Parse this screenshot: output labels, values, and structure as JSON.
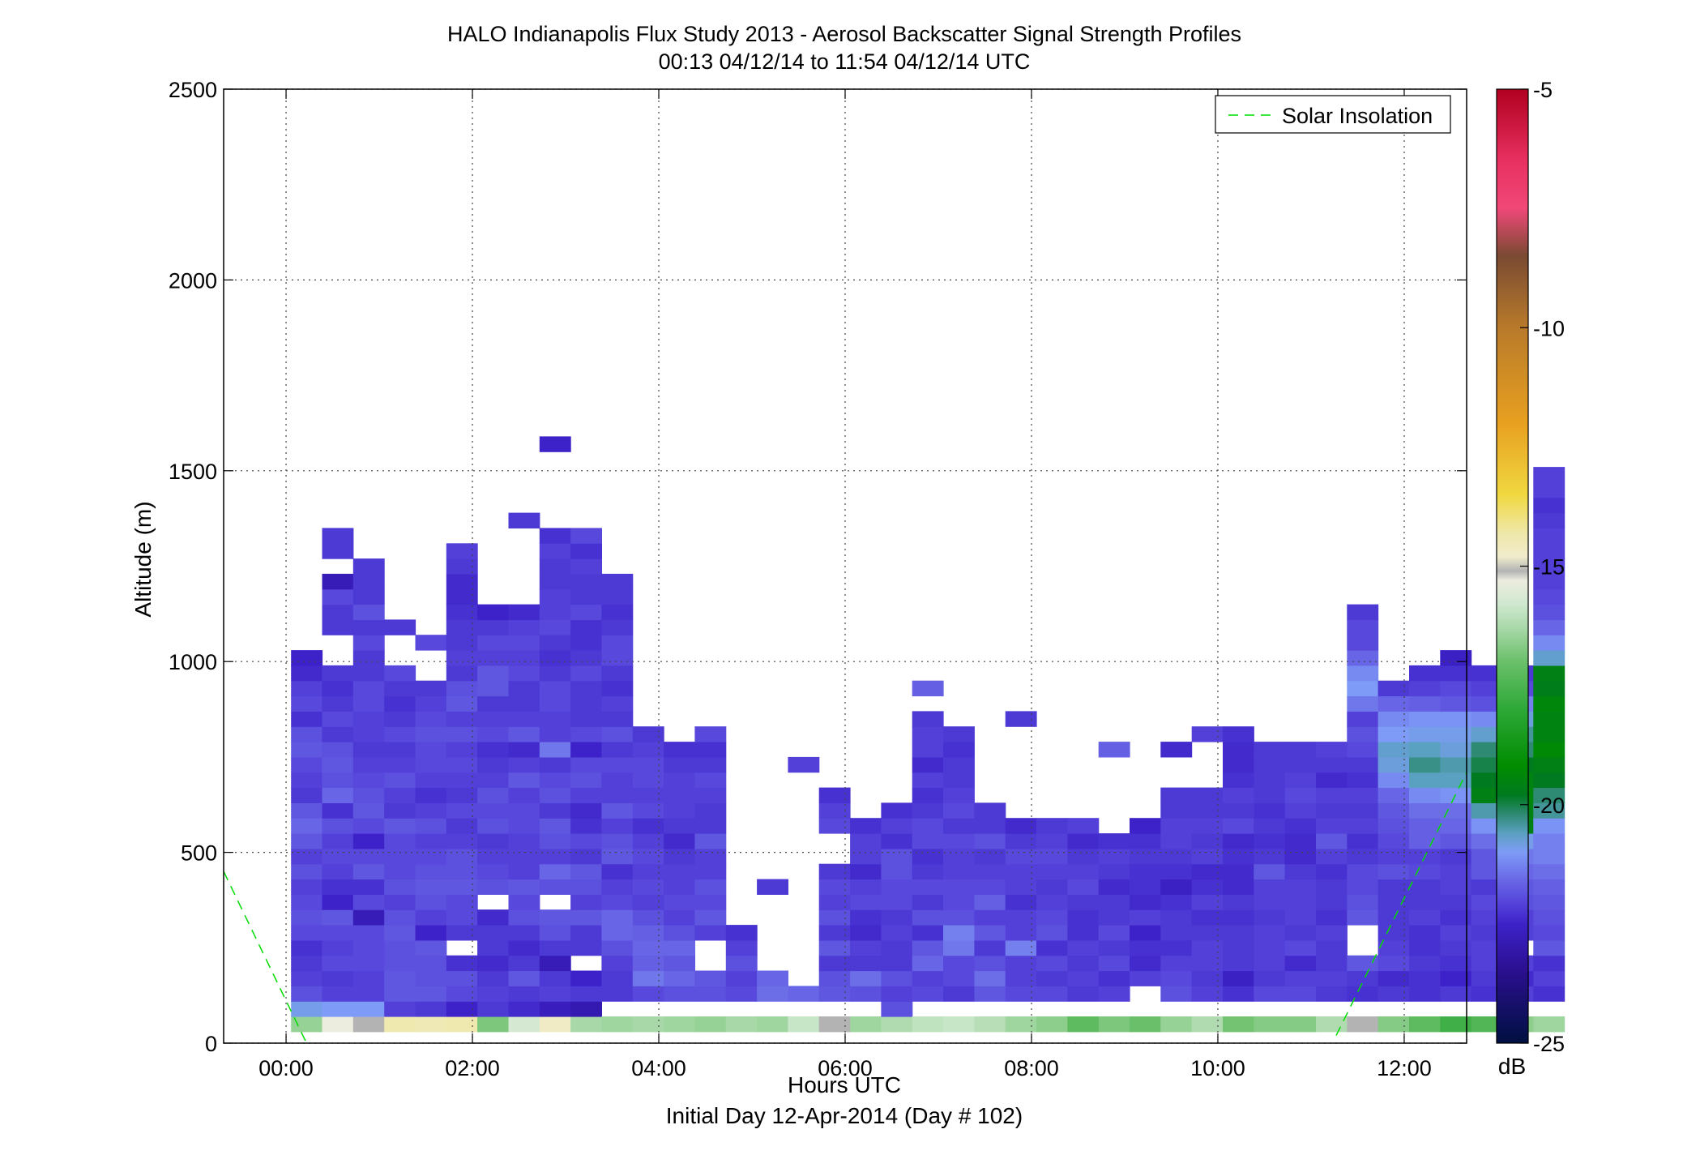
{
  "chart_data": {
    "type": "heatmap",
    "title": "HALO Indianapolis Flux Study 2013 - Aerosol Backscatter Signal Strength Profiles",
    "subtitle": "00:13 04/12/14 to 11:54 04/12/14  UTC",
    "xlabel": "Hours UTC",
    "xlabel2": "Initial Day 12-Apr-2014 (Day # 102)",
    "ylabel": "Altitude (m)",
    "xlim": [
      -0.67,
      12.67
    ],
    "ylim": [
      0,
      2500
    ],
    "x_ticks": [
      0,
      2,
      4,
      6,
      8,
      10,
      12
    ],
    "x_tick_labels": [
      "00:00",
      "02:00",
      "04:00",
      "06:00",
      "08:00",
      "10:00",
      "12:00"
    ],
    "y_ticks": [
      0,
      500,
      1000,
      1500,
      2000,
      2500
    ],
    "y_tick_labels": [
      "0",
      "500",
      "1000",
      "1500",
      "2000",
      "2500"
    ],
    "grid": true,
    "legend_position": "top-right",
    "legend": [
      {
        "name": "Solar Insolation",
        "style": "dashed",
        "color": "#00dd00"
      }
    ],
    "colorbar": {
      "label": "dB",
      "range": [
        -25,
        -5
      ],
      "ticks": [
        -5,
        -10,
        -15,
        -20,
        -25
      ],
      "tick_labels": [
        "-5",
        "-10",
        "-15",
        "-20",
        "-25"
      ]
    },
    "cell": {
      "dt_hours": 0.3333,
      "dz_m": 40,
      "z_start_m": 30,
      "t_start_hours": 0.22
    },
    "profiles": [
      {
        "h0": 1,
        "s": "-16.5 -20.9 -21.9 -22.1 -22.2 -22.3 -22.0 -21.9 -22.0 -22.1 -21.9 -22.1 -21.8 -21.6 -21.8 -22.2 -22.1 -22.0 -21.8 -21.9 -22.3 -22.0 -22.1 -22.4 -22.5"
      },
      {
        "h0": 1,
        "s": "-15.3 -21.0 -22.1 -22.2 -22.0 -22.1 -22.0 -21.8 -22.5 -22.3 -22.1 -22.0 -22.1 -21.9 -22.3 -21.6 -21.9 -21.8 -21.9 -22.2 -22.0 -22.2 -22.3 -22.2 - - -22.2 -22.2 -22.0 -22.8 - -22.2 -22.2"
      },
      {
        "h0": 1,
        "s": "-15.1 -21.0 -22.1 -22.1 -22.0 -22.0 -22.0 -22.8 -22.0 -22.3 -21.8 -22.0 -22.5 -22.0 -21.8 -21.9 -22.0 -22.1 -22.2 -22.1 -22.1 -22.0 -22.0 -22.2 -22.2 -22.0 -22.2 -21.9 -22.2 -22.2 -22.2"
      },
      {
        "h0": 1,
        "s": "-14.4 -22.1 -21.8 -21.8 -21.9 -21.9 -21.8 -21.9 -22.1 -21.9 -22.0 -22.0 -22.0 -21.8 -22.2 -22.1 -21.9 -22.1 -22.2 -22.0 -22.2 -22.3 -22.2 -22.0 - - -22.2"
      },
      {
        "h0": 1,
        "s": "-14.5 -22.2 -21.8 -21.9 -21.9 -21.8 -22.5 -22.1 -21.9 -21.8 -21.9 -22.0 -22.1 -21.9 -22.1 -22.3 -22.1 -22.0 -22.0 -21.9 -22.0 -22.1 -22.2 - - -22.0"
      },
      {
        "h0": 1,
        "s": "-14.4 -22.5 -22.0 -21.9 -22.3 - -22.2 -22.0 -22.0 -21.8 -21.9 -21.9 -22.1 -22.2 -22.0 -22.2 -22.1 -22.0 -22.1 -21.9 -22.1 -21.8 -21.9 -22.2 -22.1 -22.2 -22.2 -22.3 -22.4 -22.4 -22.2 -22.1"
      },
      {
        "h0": 1,
        "s": "-16.8 -22.2 -22.1 -22.2 -22.4 -22.2 -22.2 -22.4 - -21.9 -22.0 -22.1 -22.2 -21.9 -22.0 -21.9 -22.1 -22.2 -22.3 -22.0 -22.1 -22.2 -21.8 -21.8 -22.1 -22.0 -22.2 -22.5"
      },
      {
        "h0": 1,
        "s": "-15.7 -22.4 -22.2 -21.8 -22.2 -22.4 -22.2 -21.9 -22.0 -21.8 -22.1 -22.1 -22.1 -22.0 -22.0 -22.1 -21.8 -22.1 -22.4 -21.8 -22.1 -22.2 -22.2 -22.0 -22.1 -22.0 -22.1 -22.4 - - - - - -22.2"
      },
      {
        "h0": 1,
        "s": "-14.7 -22.7 -22.1 -22.2 -22.8 -22.2 -21.9 -21.8 - -21.9 -21.6 -22.1 -21.9 -21.8 -22.2 -21.9 -22.0 -22.2 -21.4 -22.1 -22.1 -22.0 -22.0 -22.2 -22.3 -22.2 -22.0 -22.1 -22.1 -22.2 -22.2 -22.1 -22.3 - - - - - -22.5"
      },
      {
        "h0": 1,
        "s": "-16.3 -22.9 -22.2 -22.5 - -22.2 -22.2 -21.8 -22.1 -21.9 -21.8 -22.2 -22.0 -22.3 -22.4 -22.1 -21.9 -22.0 -22.5 -22.0 -22.2 -22.2 -22.2 -22.0 -22.2 -22.3 -22.3 -22.0 -22.2 -22.2 -22.1 -22.3 -22.0"
      },
      {
        "h0": 2,
        "s": "-16.4 -22.2 -22.2 -22.1 -21.9 -21.6 -21.6 -22.0 -22.1 -22.3 -21.8 -21.9 -22.1 -21.8 -22.1 -22.1 -22.0 -22.2 -21.9 -22.2 -22.1 -22.3 -22.2 -22.0 -22.0 -22.2 -22.3 -22.2 -22.2"
      },
      {
        "h0": 2,
        "s": "-16.3 -22.0 -21.4 -21.7 -21.6 -21.7 -21.9 -22.1 -22.0 -22.1 -22.0 -22.1 -22.3 -22.0 -22.1 -22.0 -22.0 -22.1 -22.2"
      },
      {
        "h0": 2,
        "s": "-16.4 -21.9 -21.6 -21.8 -21.6 -21.9 -22.1 -22.0 -22.1 -22.1 -22.2 -22.4 -22.2 -22.1 -22.1 -22.1 -22.2 -22.3"
      },
      {
        "h0": 2,
        "s": "-16.5 -21.9 -21.8 - - -22.1 -21.8 -22.0 -21.9 -22.1 -22.1 -21.8 -22.2 -22.2 -22.1 -22.0 -22.2 -22.3 -22.0"
      },
      {
        "h0": 2,
        "s": "-16.3 -22.0 -22.1 -21.9 -22.1 -22.3"
      },
      {
        "h0": 2,
        "s": "-16.4 -21.5 -21.6 - - - - - -22.2"
      },
      {
        "h0": 2,
        "s": "-15.9 -21.6 - - - - - - - - - - - - - - -22.1"
      },
      {
        "h0": 2,
        "s": "-15.1 -21.8 -21.9 -22.2 -21.8 -22.2 -21.9 -22.1 -22.0 -22.2 - - -22.0 -22.1 -22.3"
      },
      {
        "h0": 2,
        "s": "-16.4 -21.9 -21.5 -22.2 -22.1 -22.4 -22.3 -22.0 -22.1 -22.4 -22.1 -22.1 -22.3"
      },
      {
        "h0": 1,
        "s": "-16.2 -21.9 -22.1 -21.9 -22.2 -22.2 -22.1 -22.2 -22.0 -22.0 -21.9 -21.9 -22.3 -22.1 -22.3"
      },
      {
        "h0": 2,
        "s": "-16.0 -22.0 -22.1 -21.6 -21.8 -22.3 -21.9 -22.2 -22.0 -22.2 -22.3 -22.0 -22.0 -22.2 -22.3 -22.1 -22.4 -22.1 -22.1 -22.2 - -21.7"
      },
      {
        "h0": 2,
        "s": "-15.9 -22.2 -22.0 -22.0 -21.4 -21.3 -21.9 -22.0 -22.0 -22.1 -22.1 -22.0 -22.2 -22.0 -22.1 -22.2 -22.2 -22.3 -22.2"
      },
      {
        "h0": 2,
        "s": "-16.1 -21.8 -21.5 -21.9 -22.2 -21.8 -22.1 -21.7 -22.0 -22.1 -22.2 -21.9 -22.2 -22.2"
      },
      {
        "h0": 2,
        "s": "-16.4 -22.0 -22.1 -22.1 -21.3 -22.1 -22.1 -22.3 -22.1 -22.1 -22.0 -22.2 -22.4 - - - - - - -22.2"
      },
      {
        "h0": 2,
        "s": "-16.6 -22.0 -22.2 -22.0 -22.3 -21.9 -22.0 -22.1 -22.2 -22.1 -22.0 -22.1 -22.2"
      },
      {
        "h0": 2,
        "s": "-17.2 -22.2 -22.1 -22.2 -22.1 -22.3 -22.3 -22.2 -22.0 -22.1 -22.2 -22.4 -22.1"
      },
      {
        "h0": 2,
        "s": "-16.8 -22.1 -22.3 -22.0 -22.2 -22.0 -22.2 -22.2 -22.4 -22.2 -22.1 -22.3 - - - - - -21.7"
      },
      {
        "h0": 2,
        "s": "-17.0 - -22.1 -22.4 -22.3 -22.5 -22.1 -22.4 -22.3 -22.3 -22.2 -22.3 -22.5"
      },
      {
        "h0": 2,
        "s": "-16.5 -21.9 -22.0 -22.1 -22.3 -22.2 -22.2 -22.3 -22.6 -22.3 -22.2 -22.1 -22.1 -22.2 -22.2 - - -22.4"
      },
      {
        "h0": 2,
        "s": "-16.2 -22.1 -22.2 -22.1 -22.1 -22.2 -22.3 -22.1 -22.3 -22.4 -22.1 -22.2 -22.1 -22.2 -22.2 - - - -22.1"
      },
      {
        "h0": 2,
        "s": "-16.9 -22.3 -22.6 -22.2 -22.2 -22.2 -22.3 -22.2 -22.4 -22.4 -22.3 -22.4 -22.0 -22.2 -22.1 -22.3 -22.4 -22.4 -22.3"
      },
      {
        "h0": 2,
        "s": "-16.7 -22.0 -22.2 -22.1 -22.1 -22.1 -22.2 -22.1 -22.1 -21.8 -22.2 -22.3 -22.2 -22.3 -22.2 -22.2 -22.2 -22.2"
      },
      {
        "h0": 2,
        "s": "-16.7 -22.0 -22.1 -22.4 -22.0 -22.2 -22.1 -22.1 -22.1 -22.2 -22.4 -22.4 -22.3 -22.1 -22.0 -22.1 -22.2 -22.2"
      },
      {
        "h0": 2,
        "s": "-16.2 -22.2 -22.1 -22.2 -22.2 -22.1 -22.3 -22.2 -22.2 -22.3 -22.1 -21.8 -22.1 -22.2 -22.1 -22.4 -22.2 -22.1"
      },
      {
        "h0": 2,
        "s": "-15.1 -22.3 -22.2 -21.8 - - -21.8 -21.9 -22.0 -22.0 -22.2 -22.3 -22.1 -22.2 -22.1 -22.3 -22.2 -22.0 -21.9 -22.1 -21.4 -21.0 -21.2 -21.6 -22.0 -22.0 -22.2"
      },
      {
        "h0": 2,
        "s": "-16.7 -22.2 -22.4 -22.0 -22.1 -22.2 -22.2 -22.2 -22.2 -21.9 -22.1 -22.0 -21.9 -21.8 -21.6 -21.2 -20.8 -20.7 -21.0 -21.2 -21.6 -22.2"
      },
      {
        "h0": 2,
        "s": "-17.2 -22.3 -22.3 -22.2 -22.3 -22.3 -22.1 -22.2 -22.2 -22.0 -22.1 -21.7 -21.7 -21.5 -21.2 -20.6 -20.3 -20.6 -20.9 -21.1 -21.7 -22.1 -22.3"
      },
      {
        "h0": 2,
        "s": "-17.7 -22.2 -22.5 -22.3 -22.2 -22.1 -22.3 -22.2 -22.1 -22.1 -22.2 -21.8 -21.6 -21.5 -21.1 -20.6 -20.5 -20.8 -20.9 -21.1 -21.8 -22.0 -22.3 -22.6"
      },
      {
        "h0": 2,
        "s": "-17.4 -22.3 -22.2 -22.1 -22.1 -22.2 -22.1 -22.0 -22.2 -21.8 -21.8 -21.5 -21.1 -20.5 -19.6 -19.8 -20.0 -20.2 -20.7 -21.2 -21.9 -22.1 -22.3"
      },
      {
        "h0": 2,
        "s": "-16.6 -22.1 -22.4 -22.1 - -22.1 -22.1 -21.9 -21.8 -21.6 -21.4 -20.9 -19.6 -19.5 -19.4 -19.5 -19.8 -20.2 -20.4 -20.8 -21.3 -22.0 -22.2"
      },
      {
        "h0": 2,
        "s": "-16.4 -22.3 -22.1 -22.3 -21.8 -22.0 -21.9 -21.8 -21.7 -21.5 -21.3 -21.3 -21.1 -20.4 -20.2 -19.8 -19.6 -19.3 -19.5 -19.5 -19.4 -19.7 -19.6 -20.7 -21.2 -21.6 -21.9 -22.0 -22.1 -22.1 -22.1 -22.1 -22.2 -22.3 -22.1 -22.1"
      }
    ]
  }
}
